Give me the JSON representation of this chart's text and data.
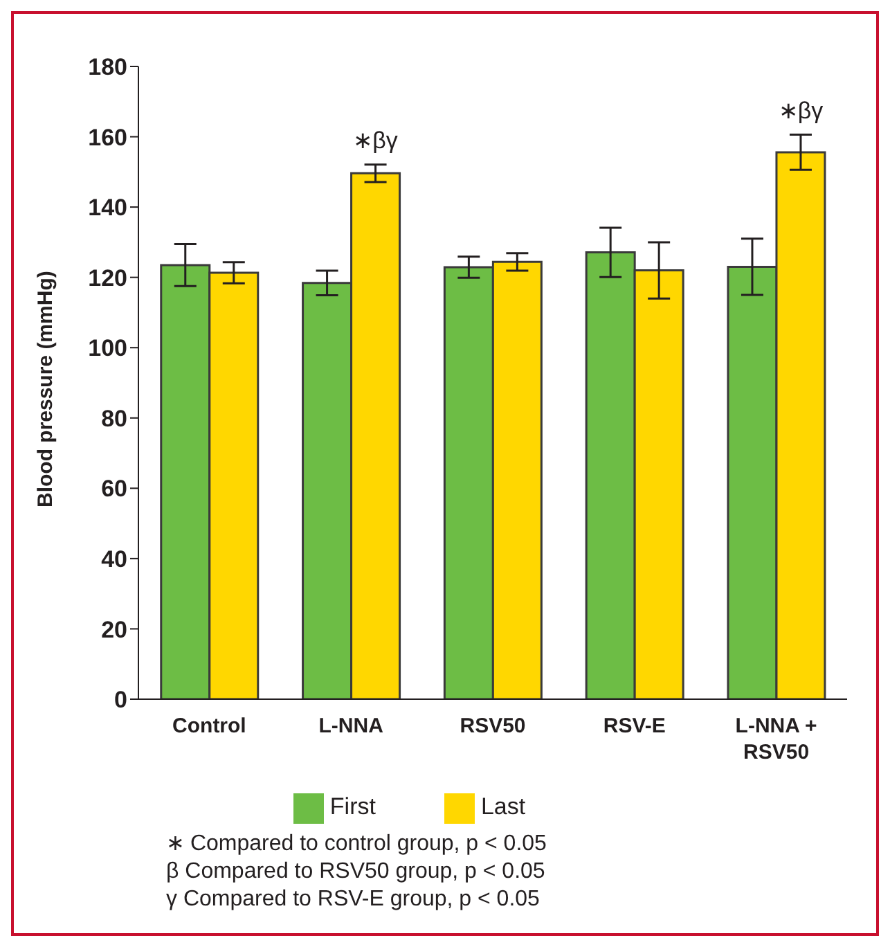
{
  "chart_data": {
    "type": "bar",
    "ylabel": "Blood pressure (mmHg)",
    "categories": [
      "Control",
      "L-NNA",
      "RSV50",
      "RSV-E",
      "L-NNA + RSV50"
    ],
    "series": [
      {
        "name": "First",
        "color": "#6dbd45",
        "values": [
          123.5,
          118.4,
          122.9,
          127.1,
          123
        ],
        "errors": [
          6,
          3.5,
          3,
          7,
          8
        ]
      },
      {
        "name": "Last",
        "color": "#ffd700",
        "values": [
          121.3,
          149.6,
          124.4,
          122,
          155.6
        ],
        "errors": [
          3,
          2.5,
          2.5,
          8,
          5
        ]
      }
    ],
    "ylim": [
      0,
      180
    ],
    "yticks": [
      0,
      20,
      40,
      60,
      80,
      100,
      120,
      140,
      160,
      180
    ],
    "grid": false,
    "legend": "bottom",
    "annotations": [
      {
        "text": "∗βγ",
        "x": "L-NNA",
        "y": 149.6
      },
      {
        "text": "∗βγ",
        "x": "L-NNA + RSV50",
        "y": 155.6
      },
      "∗ Compared to control group, p < 0.05",
      "β Compared to RSV50 group, p < 0.05",
      "γ Compared to RSV-E group, p < 0.05"
    ]
  }
}
